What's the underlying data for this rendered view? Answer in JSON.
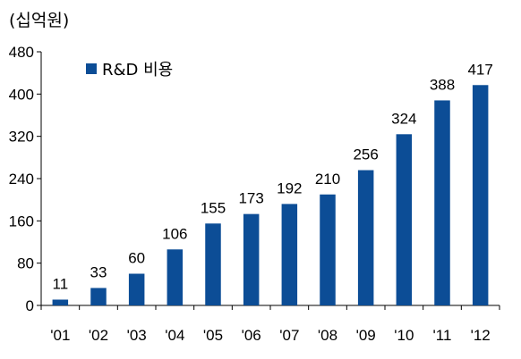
{
  "chart_data": {
    "type": "bar",
    "unit_label": "(십억원)",
    "categories": [
      "'01",
      "'02",
      "'03",
      "'04",
      "'05",
      "'06",
      "'07",
      "'08",
      "'09",
      "'10",
      "'11",
      "'12"
    ],
    "series": [
      {
        "name": "R&D 비용",
        "values": [
          11,
          33,
          60,
          106,
          155,
          173,
          192,
          210,
          256,
          324,
          388,
          417
        ],
        "color": "#0c4d96"
      }
    ],
    "y_ticks": [
      "0",
      "80",
      "160",
      "240",
      "320",
      "400",
      "480"
    ],
    "ylim": [
      0,
      480
    ],
    "grid": false,
    "legend_position": "top-left",
    "data_labels": true
  }
}
